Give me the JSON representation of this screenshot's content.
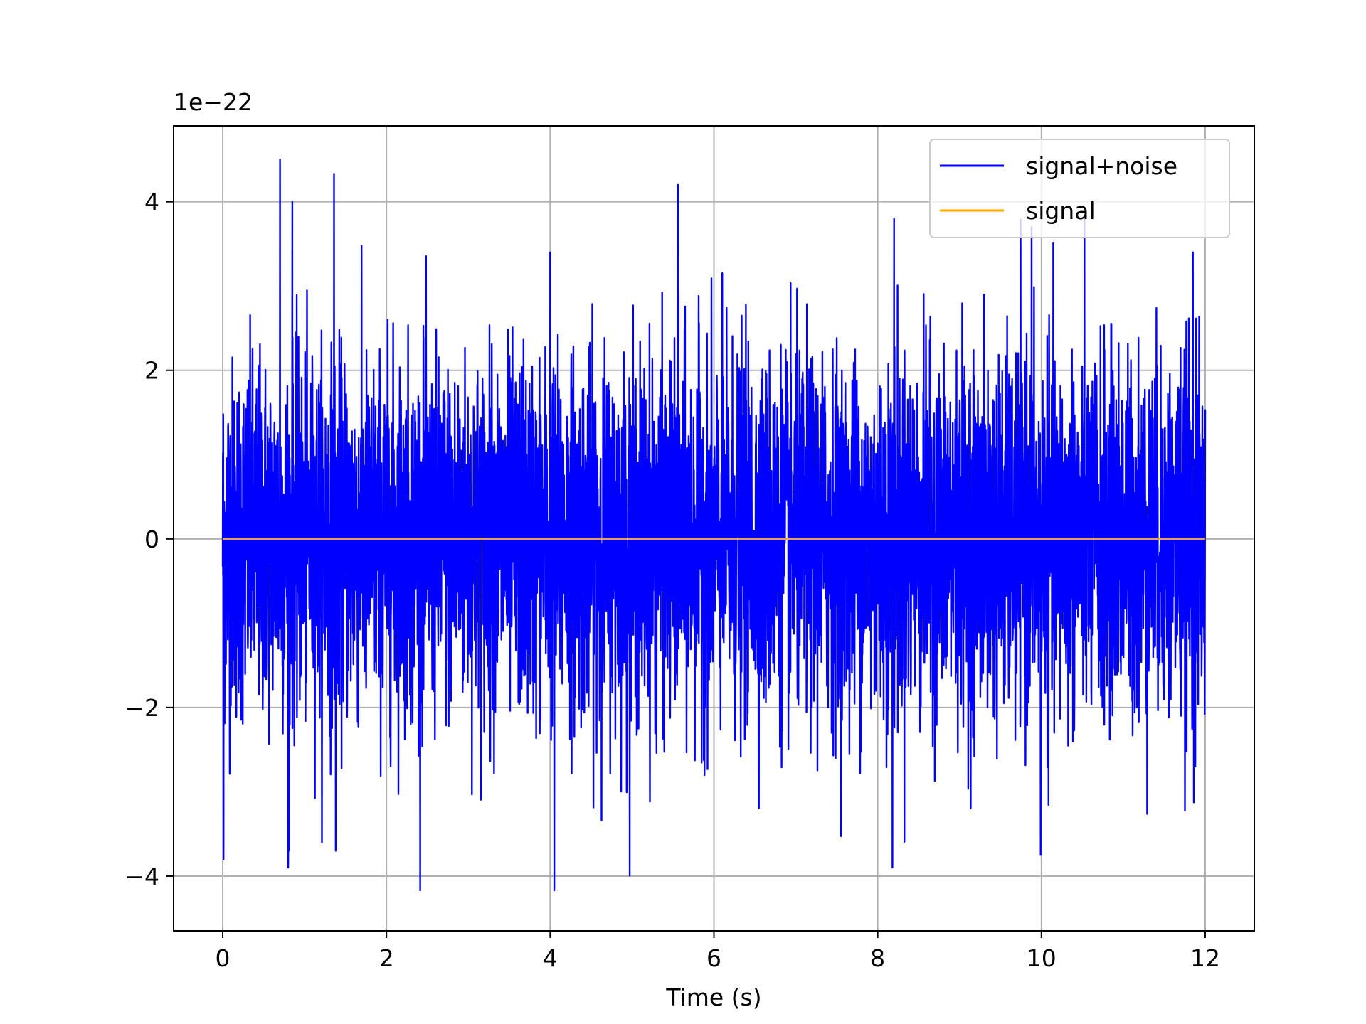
{
  "chart_data": {
    "type": "line",
    "xlabel": "Time (s)",
    "ylabel": "",
    "y_offset_label": "1e−22",
    "y_scale_factor": 1e-22,
    "xlim": [
      -0.6,
      12.6
    ],
    "ylim": [
      -4.65,
      4.9
    ],
    "x_ticks": [
      0,
      2,
      4,
      6,
      8,
      10,
      12
    ],
    "x_tick_labels": [
      "0",
      "2",
      "4",
      "6",
      "8",
      "10",
      "12"
    ],
    "y_ticks": [
      -4,
      -2,
      0,
      2,
      4
    ],
    "y_tick_labels": [
      "−4",
      "−2",
      "0",
      "2",
      "4"
    ],
    "grid": true,
    "legend": {
      "placement": "top-right"
    },
    "series": [
      {
        "name": "signal+noise",
        "color": "#0000ff",
        "x_start": 0,
        "x_end": 12,
        "envelope": {
          "typical_abs": 1.7,
          "min": -4.17,
          "max": 4.5
        },
        "peaks": [
          {
            "x": 0.01,
            "y": -3.8
          },
          {
            "x": 0.7,
            "y": 4.5
          },
          {
            "x": 0.85,
            "y": 4.0
          },
          {
            "x": 0.8,
            "y": -3.9
          },
          {
            "x": 1.36,
            "y": 4.33
          },
          {
            "x": 1.38,
            "y": -3.7
          },
          {
            "x": 4.05,
            "y": -4.17
          },
          {
            "x": 4.0,
            "y": 3.4
          },
          {
            "x": 5.56,
            "y": 4.2
          },
          {
            "x": 8.2,
            "y": 3.8
          },
          {
            "x": 8.18,
            "y": -3.9
          },
          {
            "x": 9.88,
            "y": 3.7
          },
          {
            "x": 9.99,
            "y": -3.75
          },
          {
            "x": 11.85,
            "y": 3.4
          },
          {
            "x": 11.88,
            "y": -2.7
          }
        ]
      },
      {
        "name": "signal",
        "color": "#ffa500",
        "x_start": 0,
        "x_end": 12,
        "values_constant": 0
      }
    ]
  }
}
